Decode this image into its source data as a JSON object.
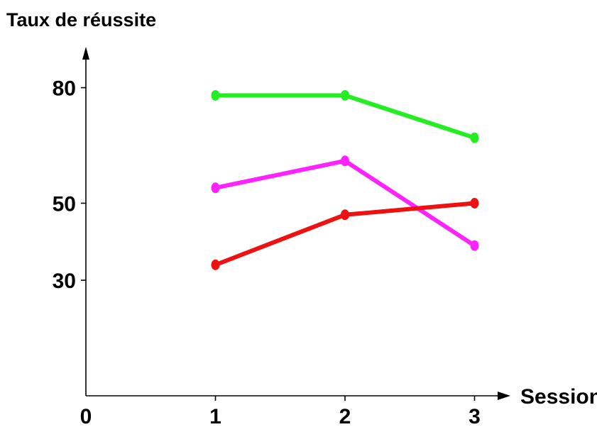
{
  "chart_data": {
    "type": "line",
    "title": "Taux de réussite",
    "xlabel": "Session",
    "ylabel": "Taux de réussite",
    "x": [
      1,
      2,
      3
    ],
    "x_ticks": [
      "0",
      "1",
      "2",
      "3"
    ],
    "y_ticks": [
      "30",
      "50",
      "80"
    ],
    "xlim": [
      0,
      3.15
    ],
    "ylim": [
      0,
      88
    ],
    "grid": false,
    "series": [
      {
        "color": "#22ee22",
        "values": [
          78,
          78,
          67
        ]
      },
      {
        "color": "#ff22ff",
        "values": [
          54,
          61,
          39
        ]
      },
      {
        "color": "#ee1111",
        "values": [
          34,
          47,
          50
        ]
      }
    ]
  }
}
